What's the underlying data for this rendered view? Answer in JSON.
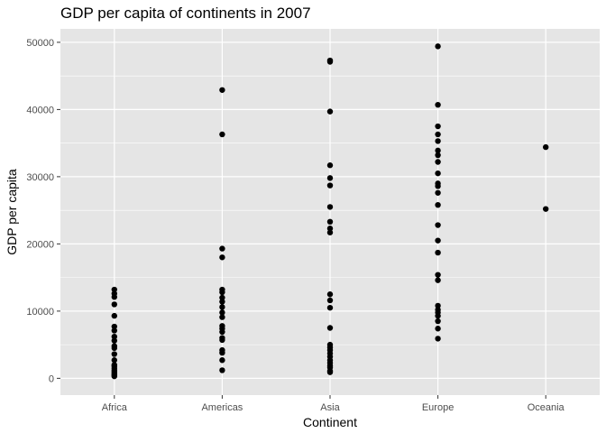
{
  "chart_data": {
    "type": "scatter",
    "title": "GDP per capita of continents in 2007",
    "xlabel": "Continent",
    "ylabel": "GDP per capita",
    "categories": [
      "Africa",
      "Americas",
      "Asia",
      "Europe",
      "Oceania"
    ],
    "ylim": [
      -2500,
      52000
    ],
    "yticks": [
      0,
      10000,
      20000,
      30000,
      40000,
      50000
    ],
    "ytick_labels": [
      "0",
      "10000",
      "20000",
      "30000",
      "40000",
      "50000"
    ],
    "grid": true,
    "legend": "none",
    "colors": {
      "panel": "#e5e5e5",
      "grid": "#ffffff",
      "point": "#000000"
    },
    "points": [
      {
        "x": "Africa",
        "y": 13200
      },
      {
        "x": "Africa",
        "y": 12600
      },
      {
        "x": "Africa",
        "y": 12100
      },
      {
        "x": "Africa",
        "y": 11000
      },
      {
        "x": "Africa",
        "y": 9300
      },
      {
        "x": "Africa",
        "y": 7700
      },
      {
        "x": "Africa",
        "y": 7100
      },
      {
        "x": "Africa",
        "y": 6200
      },
      {
        "x": "Africa",
        "y": 5600
      },
      {
        "x": "Africa",
        "y": 4800
      },
      {
        "x": "Africa",
        "y": 4500
      },
      {
        "x": "Africa",
        "y": 3600
      },
      {
        "x": "Africa",
        "y": 2700
      },
      {
        "x": "Africa",
        "y": 2000
      },
      {
        "x": "Africa",
        "y": 1800
      },
      {
        "x": "Africa",
        "y": 1500
      },
      {
        "x": "Africa",
        "y": 1200
      },
      {
        "x": "Africa",
        "y": 1000
      },
      {
        "x": "Africa",
        "y": 800
      },
      {
        "x": "Africa",
        "y": 600
      },
      {
        "x": "Africa",
        "y": 450
      },
      {
        "x": "Africa",
        "y": 300
      },
      {
        "x": "Americas",
        "y": 42900
      },
      {
        "x": "Americas",
        "y": 36300
      },
      {
        "x": "Americas",
        "y": 19300
      },
      {
        "x": "Americas",
        "y": 18000
      },
      {
        "x": "Americas",
        "y": 13200
      },
      {
        "x": "Americas",
        "y": 12800
      },
      {
        "x": "Americas",
        "y": 12000
      },
      {
        "x": "Americas",
        "y": 11400
      },
      {
        "x": "Americas",
        "y": 10600
      },
      {
        "x": "Americas",
        "y": 9800
      },
      {
        "x": "Americas",
        "y": 9100
      },
      {
        "x": "Americas",
        "y": 7800
      },
      {
        "x": "Americas",
        "y": 7400
      },
      {
        "x": "Americas",
        "y": 6900
      },
      {
        "x": "Americas",
        "y": 6000
      },
      {
        "x": "Americas",
        "y": 5700
      },
      {
        "x": "Americas",
        "y": 4200
      },
      {
        "x": "Americas",
        "y": 3800
      },
      {
        "x": "Americas",
        "y": 2700
      },
      {
        "x": "Americas",
        "y": 1200
      },
      {
        "x": "Asia",
        "y": 47300
      },
      {
        "x": "Asia",
        "y": 47100
      },
      {
        "x": "Asia",
        "y": 39700
      },
      {
        "x": "Asia",
        "y": 31700
      },
      {
        "x": "Asia",
        "y": 29800
      },
      {
        "x": "Asia",
        "y": 28700
      },
      {
        "x": "Asia",
        "y": 25500
      },
      {
        "x": "Asia",
        "y": 23300
      },
      {
        "x": "Asia",
        "y": 22300
      },
      {
        "x": "Asia",
        "y": 21700
      },
      {
        "x": "Asia",
        "y": 12500
      },
      {
        "x": "Asia",
        "y": 11600
      },
      {
        "x": "Asia",
        "y": 10500
      },
      {
        "x": "Asia",
        "y": 7500
      },
      {
        "x": "Asia",
        "y": 5000
      },
      {
        "x": "Asia",
        "y": 4600
      },
      {
        "x": "Asia",
        "y": 4200
      },
      {
        "x": "Asia",
        "y": 3700
      },
      {
        "x": "Asia",
        "y": 3200
      },
      {
        "x": "Asia",
        "y": 2700
      },
      {
        "x": "Asia",
        "y": 2300
      },
      {
        "x": "Asia",
        "y": 1900
      },
      {
        "x": "Asia",
        "y": 1600
      },
      {
        "x": "Asia",
        "y": 1100
      },
      {
        "x": "Asia",
        "y": 900
      },
      {
        "x": "Europe",
        "y": 49400
      },
      {
        "x": "Europe",
        "y": 40700
      },
      {
        "x": "Europe",
        "y": 37500
      },
      {
        "x": "Europe",
        "y": 36300
      },
      {
        "x": "Europe",
        "y": 35300
      },
      {
        "x": "Europe",
        "y": 33900
      },
      {
        "x": "Europe",
        "y": 33200
      },
      {
        "x": "Europe",
        "y": 32200
      },
      {
        "x": "Europe",
        "y": 30500
      },
      {
        "x": "Europe",
        "y": 29000
      },
      {
        "x": "Europe",
        "y": 28600
      },
      {
        "x": "Europe",
        "y": 27600
      },
      {
        "x": "Europe",
        "y": 25800
      },
      {
        "x": "Europe",
        "y": 22800
      },
      {
        "x": "Europe",
        "y": 20500
      },
      {
        "x": "Europe",
        "y": 18700
      },
      {
        "x": "Europe",
        "y": 15400
      },
      {
        "x": "Europe",
        "y": 14600
      },
      {
        "x": "Europe",
        "y": 10800
      },
      {
        "x": "Europe",
        "y": 10200
      },
      {
        "x": "Europe",
        "y": 9800
      },
      {
        "x": "Europe",
        "y": 9300
      },
      {
        "x": "Europe",
        "y": 8500
      },
      {
        "x": "Europe",
        "y": 7400
      },
      {
        "x": "Europe",
        "y": 5900
      },
      {
        "x": "Oceania",
        "y": 34400
      },
      {
        "x": "Oceania",
        "y": 25200
      }
    ]
  }
}
